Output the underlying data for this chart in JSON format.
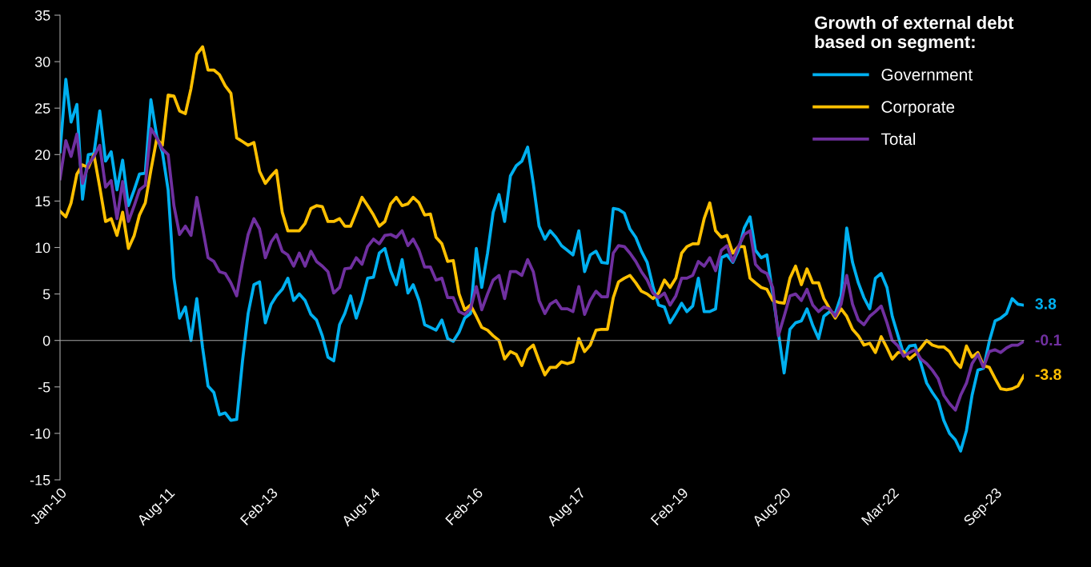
{
  "chart_data": {
    "type": "line",
    "legend_title": "Growth of external debt\nbased on segment:",
    "x": [
      "2010-01",
      "2010-02",
      "2010-03",
      "2010-04",
      "2010-05",
      "2010-06",
      "2010-07",
      "2010-08",
      "2010-09",
      "2010-10",
      "2010-11",
      "2010-12",
      "2011-01",
      "2011-02",
      "2011-03",
      "2011-04",
      "2011-05",
      "2011-06",
      "2011-07",
      "2011-08",
      "2011-09",
      "2011-10",
      "2011-11",
      "2011-12",
      "2012-01",
      "2012-02",
      "2012-03",
      "2012-04",
      "2012-05",
      "2012-06",
      "2012-07",
      "2012-08",
      "2012-09",
      "2012-10",
      "2012-11",
      "2012-12",
      "2013-01",
      "2013-02",
      "2013-03",
      "2013-04",
      "2013-05",
      "2013-06",
      "2013-07",
      "2013-08",
      "2013-09",
      "2013-10",
      "2013-11",
      "2013-12",
      "2014-01",
      "2014-02",
      "2014-03",
      "2014-04",
      "2014-05",
      "2014-06",
      "2014-07",
      "2014-08",
      "2014-09",
      "2014-10",
      "2014-11",
      "2014-12",
      "2015-01",
      "2015-02",
      "2015-03",
      "2015-04",
      "2015-05",
      "2015-06",
      "2015-07",
      "2015-08",
      "2015-09",
      "2015-10",
      "2015-11",
      "2015-12",
      "2016-01",
      "2016-02",
      "2016-03",
      "2016-04",
      "2016-05",
      "2016-06",
      "2016-07",
      "2016-08",
      "2016-09",
      "2016-10",
      "2016-11",
      "2016-12",
      "2017-01",
      "2017-02",
      "2017-03",
      "2017-04",
      "2017-05",
      "2017-06",
      "2017-07",
      "2017-08",
      "2017-09",
      "2017-10",
      "2017-11",
      "2017-12",
      "2018-01",
      "2018-02",
      "2018-03",
      "2018-04",
      "2018-05",
      "2018-06",
      "2018-07",
      "2018-08",
      "2018-09",
      "2018-10",
      "2018-11",
      "2018-12",
      "2019-01",
      "2019-02",
      "2019-03",
      "2019-04",
      "2019-05",
      "2019-06",
      "2019-07",
      "2019-08",
      "2019-09",
      "2019-10",
      "2019-11",
      "2019-12",
      "2020-01",
      "2020-02",
      "2020-03",
      "2020-04",
      "2020-05",
      "2020-06",
      "2020-07",
      "2020-08",
      "2020-09",
      "2020-10",
      "2020-11",
      "2020-12",
      "2021-01",
      "2021-02",
      "2021-03",
      "2021-04",
      "2021-05",
      "2021-06",
      "2021-07",
      "2021-08",
      "2021-09",
      "2021-10",
      "2021-11",
      "2021-12",
      "2022-01",
      "2022-02",
      "2022-03",
      "2022-04",
      "2022-05",
      "2022-06",
      "2022-07",
      "2022-08",
      "2022-09",
      "2022-10",
      "2022-11",
      "2022-12",
      "2023-01",
      "2023-02",
      "2023-03",
      "2023-04",
      "2023-05",
      "2023-06",
      "2023-07",
      "2023-08",
      "2023-09",
      "2023-10",
      "2023-11",
      "2023-12",
      "2024-01",
      "2024-02"
    ],
    "series": [
      {
        "name": "Government",
        "color": "#00b0f0",
        "values": [
          20.3,
          28.1,
          23.5,
          25.4,
          15.2,
          20,
          20.1,
          24.7,
          19.3,
          20.3,
          16.2,
          19.4,
          14.5,
          16.2,
          17.9,
          18,
          25.9,
          22,
          20.3,
          16.2,
          6.7,
          2.4,
          3.6,
          0,
          4.5,
          -0.8,
          -4.9,
          -5.6,
          -8,
          -7.8,
          -8.6,
          -8.5,
          -2.2,
          2.9,
          6,
          6.3,
          1.9,
          3.9,
          4.8,
          5.5,
          6.7,
          4.3,
          5,
          4.3,
          2.8,
          2.2,
          0.5,
          -1.8,
          -2.2,
          1.7,
          2.9,
          4.8,
          2.4,
          4.3,
          6.7,
          6.8,
          9.4,
          9.9,
          7.5,
          6,
          8.7,
          5.1,
          6,
          4.3,
          1.7,
          1.4,
          1.1,
          2.2,
          0.2,
          -0.1,
          0.9,
          2.4,
          2.9,
          9.9,
          5.7,
          9.4,
          13.8,
          15.7,
          12.8,
          17.7,
          18.8,
          19.3,
          20.8,
          16.9,
          12.3,
          10.9,
          11.8,
          11.1,
          10.2,
          9.7,
          9.2,
          11.8,
          7.4,
          9.2,
          9.6,
          8.4,
          8.3,
          14.2,
          14.1,
          13.7,
          12,
          11.1,
          9.6,
          8.4,
          5.8,
          3.8,
          3.6,
          1.9,
          2.9,
          4,
          3.1,
          3.7,
          6.7,
          3.1,
          3.1,
          3.4,
          8.9,
          9.2,
          8.4,
          9.7,
          12.1,
          13.3,
          9.7,
          8.9,
          9.2,
          5,
          0.9,
          -3.5,
          1.2,
          1.9,
          2.1,
          3.4,
          1.6,
          0.2,
          2.6,
          3.1,
          2.9,
          4.8,
          12.1,
          8.4,
          6.2,
          4.6,
          3.4,
          6.7,
          7.2,
          5.7,
          2.6,
          0.5,
          -1.5,
          -0.6,
          -0.5,
          -2.5,
          -4.6,
          -5.6,
          -6.5,
          -8.6,
          -10,
          -10.7,
          -11.9,
          -9.7,
          -5.9,
          -3.2,
          -3,
          -0.1,
          2.1,
          2.4,
          2.9,
          4.5,
          3.9,
          3.8
        ],
        "value_labels": [
          null,
          null,
          null,
          null,
          null,
          null,
          null,
          null,
          null,
          null,
          null,
          null,
          null,
          null,
          null,
          null,
          null,
          null,
          null,
          null,
          null,
          null,
          null,
          null,
          null,
          null,
          null,
          null,
          null,
          null,
          null,
          null,
          null,
          null,
          null,
          null,
          null,
          null,
          null,
          null,
          null,
          null,
          null,
          null,
          null,
          null,
          null,
          null,
          null,
          null,
          null,
          null,
          null,
          null,
          null,
          null,
          null,
          null,
          null,
          null,
          null,
          null,
          null,
          null,
          null,
          null,
          null,
          null,
          null,
          null,
          null,
          null,
          null,
          null,
          null,
          null,
          null,
          null,
          null,
          null,
          null,
          null,
          null,
          null,
          null,
          null,
          null,
          null,
          null,
          null,
          null,
          null,
          null,
          null,
          null,
          null,
          null,
          null,
          null,
          null,
          null,
          null,
          null,
          null,
          null,
          null,
          null,
          null,
          null,
          null,
          null,
          null,
          null,
          null,
          null,
          null,
          null,
          null,
          null,
          null,
          null,
          null,
          null,
          null,
          null,
          null,
          null,
          null,
          null,
          null,
          null,
          null,
          null,
          null,
          null,
          null,
          null,
          null,
          null,
          null,
          null,
          null,
          null,
          null,
          null,
          null,
          null,
          null,
          null,
          null,
          null,
          null,
          null,
          null,
          null,
          null,
          null,
          null,
          null,
          null,
          null,
          null,
          null,
          null,
          null,
          null,
          null,
          null,
          null,
          "3.8"
        ]
      },
      {
        "name": "Corporate",
        "color": "#ffc000",
        "values": [
          13.9,
          13.3,
          14.8,
          17.9,
          18.9,
          18.6,
          20,
          16.5,
          12.8,
          13.1,
          11.3,
          13.8,
          9.9,
          11.3,
          13.5,
          14.8,
          18.3,
          21.7,
          21,
          26.4,
          26.3,
          24.7,
          24.4,
          27.1,
          30.8,
          31.6,
          29.1,
          29.1,
          28.6,
          27.4,
          26.6,
          21.8,
          21.4,
          21,
          21.3,
          18.2,
          16.9,
          17.7,
          18.3,
          13.8,
          11.8,
          11.8,
          11.8,
          12.6,
          14.2,
          14.5,
          14.4,
          12.8,
          12.8,
          13.1,
          12.3,
          12.3,
          13.8,
          15.4,
          14.5,
          13.5,
          12.3,
          12.8,
          14.7,
          15.4,
          14.5,
          14.7,
          15.4,
          14.8,
          13.5,
          13.6,
          11.1,
          10.4,
          8.5,
          8.6,
          5,
          3.3,
          3.8,
          2.6,
          1.4,
          1.1,
          0.5,
          0,
          -2,
          -1.2,
          -1.5,
          -2.7,
          -1,
          -0.5,
          -2.2,
          -3.7,
          -2.9,
          -2.9,
          -2.3,
          -2.5,
          -2.3,
          0.2,
          -1.2,
          -0.5,
          1.1,
          1.2,
          1.2,
          4.6,
          6.3,
          6.7,
          7,
          6.2,
          5.3,
          5,
          4.5,
          5.1,
          6.5,
          5.7,
          6.7,
          9.4,
          10.1,
          10.4,
          10.4,
          13.1,
          14.8,
          11.8,
          11.1,
          11.3,
          9.4,
          10.1,
          10.1,
          6.7,
          6.2,
          5.7,
          5.5,
          4.3,
          4.1,
          4,
          6.7,
          8,
          6,
          7.7,
          6.2,
          6.2,
          4.5,
          3.4,
          2.4,
          3.4,
          2.6,
          1.2,
          0.5,
          -0.5,
          -0.3,
          -1.3,
          0.4,
          -0.8,
          -2,
          -1.3,
          -1.2,
          -2,
          -1.5,
          -0.8,
          0,
          -0.5,
          -0.7,
          -0.7,
          -1.2,
          -2.3,
          -2.9,
          -0.6,
          -1.8,
          -1.3,
          -2.7,
          -2.9,
          -4.1,
          -5.2,
          -5.3,
          -5.2,
          -4.9,
          -3.8
        ],
        "value_labels": [
          null,
          null,
          null,
          null,
          null,
          null,
          null,
          null,
          null,
          null,
          null,
          null,
          null,
          null,
          null,
          null,
          null,
          null,
          null,
          null,
          null,
          null,
          null,
          null,
          null,
          null,
          null,
          null,
          null,
          null,
          null,
          null,
          null,
          null,
          null,
          null,
          null,
          null,
          null,
          null,
          null,
          null,
          null,
          null,
          null,
          null,
          null,
          null,
          null,
          null,
          null,
          null,
          null,
          null,
          null,
          null,
          null,
          null,
          null,
          null,
          null,
          null,
          null,
          null,
          null,
          null,
          null,
          null,
          null,
          null,
          null,
          null,
          null,
          null,
          null,
          null,
          null,
          null,
          null,
          null,
          null,
          null,
          null,
          null,
          null,
          null,
          null,
          null,
          null,
          null,
          null,
          null,
          null,
          null,
          null,
          null,
          null,
          null,
          null,
          null,
          null,
          null,
          null,
          null,
          null,
          null,
          null,
          null,
          null,
          null,
          null,
          null,
          null,
          null,
          null,
          null,
          null,
          null,
          null,
          null,
          null,
          null,
          null,
          null,
          null,
          null,
          null,
          null,
          null,
          null,
          null,
          null,
          null,
          null,
          null,
          null,
          null,
          null,
          null,
          null,
          null,
          null,
          null,
          null,
          null,
          null,
          null,
          null,
          null,
          null,
          null,
          null,
          null,
          null,
          null,
          null,
          null,
          null,
          null,
          null,
          null,
          null,
          null,
          null,
          null,
          null,
          null,
          null,
          null,
          "-3.8"
        ]
      },
      {
        "name": "Total",
        "color": "#7030a0",
        "values": [
          17.4,
          21.5,
          19.8,
          22.2,
          16.9,
          18.9,
          19.8,
          21,
          16.5,
          17.2,
          13.1,
          17.1,
          12.8,
          14.5,
          16.2,
          16.7,
          22.8,
          21.8,
          20.6,
          20,
          14.5,
          11.4,
          12.3,
          11.3,
          15.4,
          12.1,
          8.9,
          8.5,
          7.4,
          7.2,
          6.2,
          4.8,
          8.4,
          11.4,
          13.1,
          12,
          8.9,
          10.6,
          11.4,
          9.6,
          9.2,
          8,
          9.4,
          8,
          9.6,
          8.5,
          8,
          7.4,
          5.1,
          5.7,
          7.7,
          7.8,
          8.9,
          8.2,
          10.1,
          10.9,
          10.4,
          11.3,
          11.4,
          11.1,
          11.8,
          10.2,
          10.9,
          9.7,
          7.9,
          7.9,
          6.5,
          6.7,
          4.6,
          4.6,
          3.1,
          2.8,
          3.4,
          5.8,
          3.3,
          5,
          6.5,
          7,
          4.5,
          7.4,
          7.4,
          7,
          8.7,
          7.4,
          4.3,
          2.9,
          3.9,
          4.3,
          3.4,
          3.4,
          3.1,
          5.8,
          2.8,
          4.3,
          5.3,
          4.7,
          4.7,
          9.4,
          10.2,
          10.1,
          9.4,
          8.5,
          7.4,
          6.5,
          5.1,
          4.6,
          5.1,
          3.8,
          4.8,
          6.7,
          6.7,
          7,
          8.5,
          8,
          8.9,
          7.5,
          9.7,
          10.2,
          8.5,
          10.1,
          11.4,
          11.8,
          8.2,
          7.5,
          7.2,
          5.7,
          0.5,
          2.6,
          4.8,
          5,
          4.3,
          5.5,
          3.8,
          3.1,
          3.6,
          3.4,
          2.6,
          3.9,
          7,
          3.9,
          2.2,
          1.7,
          2.6,
          3.1,
          3.7,
          1.9,
          0,
          -0.6,
          -1.7,
          -1.3,
          -1,
          -2,
          -2.5,
          -3.2,
          -4.1,
          -5.9,
          -6.8,
          -7.5,
          -5.9,
          -4.6,
          -2.5,
          -1.5,
          -2.9,
          -1.2,
          -1,
          -1.3,
          -0.8,
          -0.5,
          -0.5,
          -0.1
        ],
        "value_labels": [
          null,
          null,
          null,
          null,
          null,
          null,
          null,
          null,
          null,
          null,
          null,
          null,
          null,
          null,
          null,
          null,
          null,
          null,
          null,
          null,
          null,
          null,
          null,
          null,
          null,
          null,
          null,
          null,
          null,
          null,
          null,
          null,
          null,
          null,
          null,
          null,
          null,
          null,
          null,
          null,
          null,
          null,
          null,
          null,
          null,
          null,
          null,
          null,
          null,
          null,
          null,
          null,
          null,
          null,
          null,
          null,
          null,
          null,
          null,
          null,
          null,
          null,
          null,
          null,
          null,
          null,
          null,
          null,
          null,
          null,
          null,
          null,
          null,
          null,
          null,
          null,
          null,
          null,
          null,
          null,
          null,
          null,
          null,
          null,
          null,
          null,
          null,
          null,
          null,
          null,
          null,
          null,
          null,
          null,
          null,
          null,
          null,
          null,
          null,
          null,
          null,
          null,
          null,
          null,
          null,
          null,
          null,
          null,
          null,
          null,
          null,
          null,
          null,
          null,
          null,
          null,
          null,
          null,
          null,
          null,
          null,
          null,
          null,
          null,
          null,
          null,
          null,
          null,
          null,
          null,
          null,
          null,
          null,
          null,
          null,
          null,
          null,
          null,
          null,
          null,
          null,
          null,
          null,
          null,
          null,
          null,
          null,
          null,
          null,
          null,
          null,
          null,
          null,
          null,
          null,
          null,
          null,
          null,
          null,
          null,
          null,
          null,
          null,
          null,
          null,
          null,
          null,
          null,
          null,
          "-0.1"
        ]
      }
    ],
    "xlim": [
      "2010-01",
      "2024-02"
    ],
    "xticks": [
      {
        "value": "2010-01",
        "label": "Jan-10"
      },
      {
        "value": "2011-08",
        "label": "Aug-11"
      },
      {
        "value": "2013-02",
        "label": "Feb-13"
      },
      {
        "value": "2014-08",
        "label": "Aug-14"
      },
      {
        "value": "2016-02",
        "label": "Feb-16"
      },
      {
        "value": "2017-08",
        "label": "Aug-17"
      },
      {
        "value": "2019-02",
        "label": "Feb-19"
      },
      {
        "value": "2020-08",
        "label": "Aug-20"
      },
      {
        "value": "2022-03",
        "label": "Mar-22"
      },
      {
        "value": "2023-09",
        "label": "Sep-23"
      }
    ],
    "ylim": [
      -15,
      35
    ],
    "yticks": [
      -15,
      -10,
      -5,
      0,
      5,
      10,
      15,
      20,
      25,
      30,
      35
    ],
    "legend": "top right",
    "marker": "none",
    "line_style": "solid"
  }
}
